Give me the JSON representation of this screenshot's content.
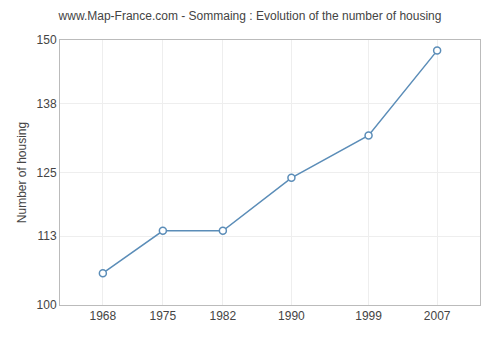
{
  "chart_data": {
    "type": "line",
    "title": "www.Map-France.com - Sommaing : Evolution of the number of housing",
    "ylabel": "Number of housing",
    "x": [
      1968,
      1975,
      1982,
      1990,
      1999,
      2007
    ],
    "values": [
      106,
      114,
      114,
      124,
      132,
      148
    ],
    "color": "#5b8db8",
    "marker": "circle",
    "xlim": [
      1963,
      2012
    ],
    "xticks": [
      1968,
      1975,
      1982,
      1990,
      1999,
      2007
    ],
    "ylim": [
      100,
      150
    ],
    "yticks": [
      100,
      113,
      125,
      138,
      150
    ],
    "grid": true
  }
}
